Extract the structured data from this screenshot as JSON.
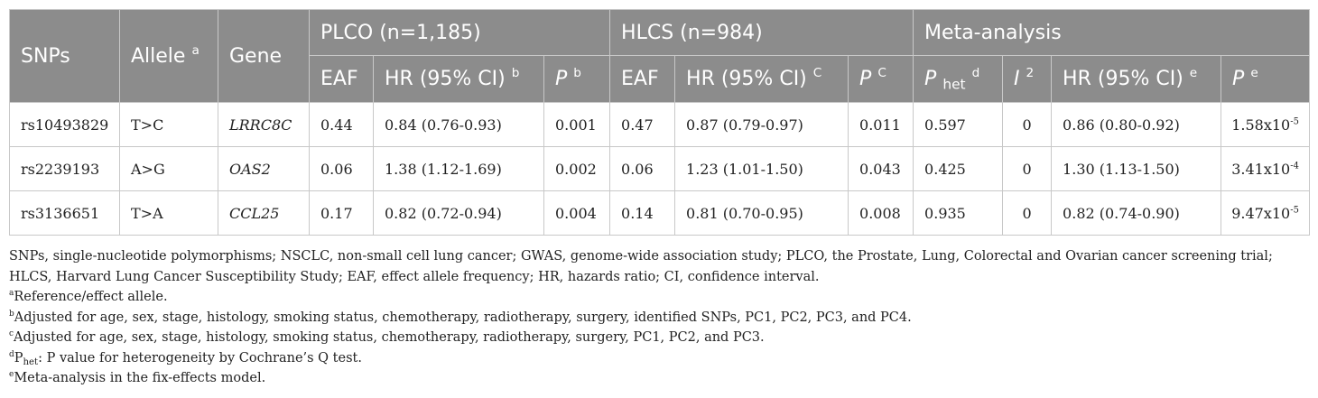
{
  "header": {
    "snps": "SNPs",
    "allele": "Allele",
    "allele_sup": "a",
    "gene": "Gene",
    "groups": [
      {
        "label": "PLCO (n=1,185)"
      },
      {
        "label": "HLCS (n=984)"
      },
      {
        "label": "Meta-analysis"
      }
    ],
    "plco": {
      "eaf": "EAF",
      "hr": "HR (95% CI)",
      "hr_sup": "b",
      "p": "P",
      "p_sup": "b"
    },
    "hlcs": {
      "eaf": "EAF",
      "hr": "HR (95% CI)",
      "hr_sup": "C",
      "p": "P",
      "p_sup": "C"
    },
    "meta": {
      "phet": "P",
      "phet_sub": "het",
      "phet_sup": "d",
      "i2": "I",
      "i2_sup": "2",
      "hr": "HR (95% CI)",
      "hr_sup": "e",
      "p": "P",
      "p_sup": "e"
    }
  },
  "rows": [
    {
      "snp": "rs10493829",
      "allele": "T>C",
      "gene": "LRRC8C",
      "plco_eaf": "0.44",
      "plco_hr": "0.84 (0.76-0.93)",
      "plco_p": "0.001",
      "hlcs_eaf": "0.47",
      "hlcs_hr": "0.87 (0.79-0.97)",
      "hlcs_p": "0.011",
      "meta_phet": "0.597",
      "meta_i2": "0",
      "meta_hr": "0.86 (0.80-0.92)",
      "meta_p_base": "1.58x10",
      "meta_p_exp": "-5"
    },
    {
      "snp": "rs2239193",
      "allele": "A>G",
      "gene": "OAS2",
      "plco_eaf": "0.06",
      "plco_hr": "1.38 (1.12-1.69)",
      "plco_p": "0.002",
      "hlcs_eaf": "0.06",
      "hlcs_hr": "1.23 (1.01-1.50)",
      "hlcs_p": "0.043",
      "meta_phet": "0.425",
      "meta_i2": "0",
      "meta_hr": "1.30 (1.13-1.50)",
      "meta_p_base": "3.41x10",
      "meta_p_exp": "-4"
    },
    {
      "snp": "rs3136651",
      "allele": "T>A",
      "gene": "CCL25",
      "plco_eaf": "0.17",
      "plco_hr": "0.82 (0.72-0.94)",
      "plco_p": "0.004",
      "hlcs_eaf": "0.14",
      "hlcs_hr": "0.81 (0.70-0.95)",
      "hlcs_p": "0.008",
      "meta_phet": "0.935",
      "meta_i2": "0",
      "meta_hr": "0.82 (0.74-0.90)",
      "meta_p_base": "9.47x10",
      "meta_p_exp": "-5"
    }
  ],
  "notes": {
    "abbrev_1": "SNPs, single-nucleotide polymorphisms; NSCLC, non-small cell lung cancer; GWAS, genome-wide association study; PLCO, the Prostate, Lung, Colorectal and Ovarian cancer screening trial;",
    "abbrev_2": "HLCS, Harvard Lung Cancer Susceptibility Study; EAF, effect allele frequency; HR, hazards ratio; CI, confidence interval.",
    "a_mark": "a",
    "a_text": "Reference/effect allele.",
    "b_mark": "b",
    "b_text": "Adjusted for age, sex, stage, histology, smoking status, chemotherapy, radiotherapy, surgery, identified SNPs, PC1, PC2, PC3, and PC4.",
    "c_mark": "c",
    "c_text": "Adjusted for age, sex, stage, histology, smoking status, chemotherapy, radiotherapy, surgery, PC1, PC2, and PC3.",
    "d_mark": "d",
    "d_p": "P",
    "d_sub": "het",
    "d_text": ": P value for heterogeneity by Cochrane’s Q test.",
    "e_mark": "e",
    "e_text": "Meta-analysis in the fix-effects model."
  }
}
